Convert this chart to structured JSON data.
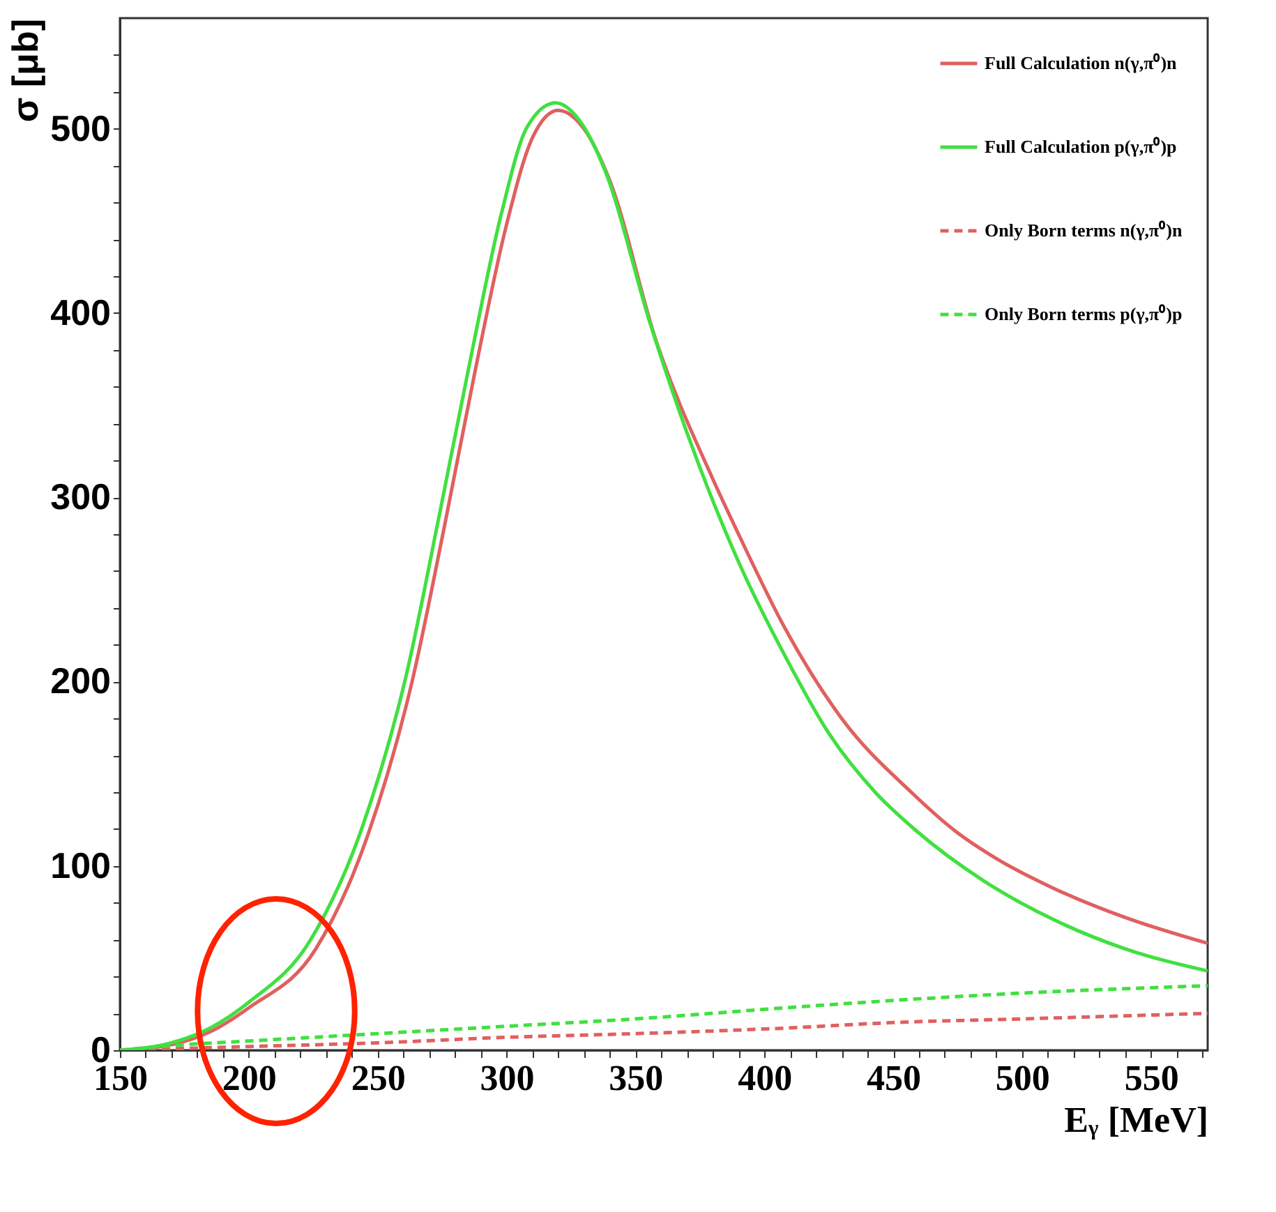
{
  "chart_data": {
    "type": "line",
    "xlabel": "Eᵧ [MeV]",
    "ylabel": "σ [μb]",
    "xlim": [
      150,
      572
    ],
    "ylim": [
      0,
      560
    ],
    "xticks": [
      150,
      {
        "value": 160,
        "label": null
      },
      {
        "value": 170,
        "label": null
      },
      {
        "value": 180,
        "label": null
      },
      {
        "value": 190,
        "label": null
      },
      200,
      {
        "value": 210,
        "label": null
      },
      {
        "value": 220,
        "label": null
      },
      {
        "value": 230,
        "label": null
      },
      {
        "value": 240,
        "label": null
      },
      250,
      {
        "value": 260,
        "label": null
      },
      {
        "value": 270,
        "label": null
      },
      {
        "value": 280,
        "label": null
      },
      {
        "value": 290,
        "label": null
      },
      300,
      {
        "value": 310,
        "label": null
      },
      {
        "value": 320,
        "label": null
      },
      {
        "value": 330,
        "label": null
      },
      {
        "value": 340,
        "label": null
      },
      350,
      {
        "value": 360,
        "label": null
      },
      {
        "value": 370,
        "label": null
      },
      {
        "value": 380,
        "label": null
      },
      {
        "value": 390,
        "label": null
      },
      400,
      {
        "value": 410,
        "label": null
      },
      {
        "value": 420,
        "label": null
      },
      {
        "value": 430,
        "label": null
      },
      {
        "value": 440,
        "label": null
      },
      450,
      {
        "value": 460,
        "label": null
      },
      {
        "value": 470,
        "label": null
      },
      {
        "value": 480,
        "label": null
      },
      {
        "value": 490,
        "label": null
      },
      500,
      {
        "value": 510,
        "label": null
      },
      {
        "value": 520,
        "label": null
      },
      {
        "value": 530,
        "label": null
      },
      {
        "value": 540,
        "label": null
      },
      550,
      {
        "value": 560,
        "label": null
      },
      {
        "value": 570,
        "label": null
      }
    ],
    "yticks": [
      0,
      {
        "value": 20,
        "label": null
      },
      {
        "value": 40,
        "label": null
      },
      {
        "value": 60,
        "label": null
      },
      {
        "value": 80,
        "label": null
      },
      100,
      {
        "value": 120,
        "label": null
      },
      {
        "value": 140,
        "label": null
      },
      {
        "value": 160,
        "label": null
      },
      {
        "value": 180,
        "label": null
      },
      200,
      {
        "value": 220,
        "label": null
      },
      {
        "value": 240,
        "label": null
      },
      {
        "value": 260,
        "label": null
      },
      {
        "value": 280,
        "label": null
      },
      300,
      {
        "value": 320,
        "label": null
      },
      {
        "value": 340,
        "label": null
      },
      {
        "value": 360,
        "label": null
      },
      {
        "value": 380,
        "label": null
      },
      400,
      {
        "value": 420,
        "label": null
      },
      {
        "value": 440,
        "label": null
      },
      {
        "value": 460,
        "label": null
      },
      {
        "value": 480,
        "label": null
      },
      500,
      {
        "value": 520,
        "label": null
      },
      {
        "value": 540,
        "label": null
      }
    ],
    "grid": false,
    "legend": "top right",
    "marker": "none",
    "series": [
      {
        "name": "Full Calculation n(γ,π⁰)n",
        "color": "#e06060",
        "line_style": "solid",
        "x": [
          150,
          170,
          185,
          200,
          226,
          246,
          263,
          276,
          288,
          300,
          310,
          320,
          330,
          340,
          358,
          380,
          390,
          408,
          430,
          457,
          474,
          490,
          512,
          540,
          572
        ],
        "values": [
          0,
          3,
          10,
          23,
          55,
          116,
          198,
          285,
          370,
          448,
          495,
          510,
          500,
          472,
          385,
          310,
          280,
          229,
          180,
          140,
          119,
          104,
          88,
          72,
          58
        ]
      },
      {
        "name": "Full Calculation p(γ,π⁰)p",
        "color": "#40e040",
        "line_style": "solid",
        "x": [
          150,
          170,
          185,
          200,
          224,
          244,
          261,
          274,
          286,
          298,
          308,
          319,
          328,
          338,
          356,
          370,
          390,
          408,
          425,
          443,
          459,
          485,
          512,
          540,
          572
        ],
        "values": [
          0,
          4,
          12,
          26,
          60,
          121,
          203,
          291,
          375,
          454,
          501,
          514,
          505,
          478,
          393,
          335,
          265,
          214,
          172,
          140,
          119,
          92,
          71,
          55,
          43
        ]
      },
      {
        "name": "Only Born terms n(γ,π⁰)n",
        "color": "#e06060",
        "line_style": "dashed",
        "x": [
          150,
          200,
          250,
          300,
          350,
          408,
          450,
          500,
          572
        ],
        "values": [
          0,
          2,
          4,
          7,
          9,
          12,
          15,
          17,
          20
        ]
      },
      {
        "name": "Only Born terms p(γ,π⁰)p",
        "color": "#40e040",
        "line_style": "dashed",
        "x": [
          150,
          175,
          200,
          250,
          300,
          350,
          408,
          450,
          500,
          572
        ],
        "values": [
          0,
          3,
          5,
          9,
          13,
          17,
          23,
          27,
          31,
          35
        ]
      }
    ]
  }
}
